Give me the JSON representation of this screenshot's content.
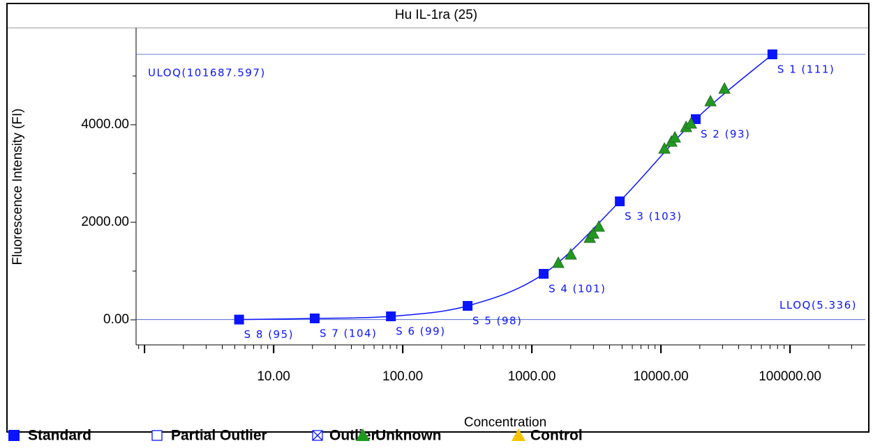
{
  "chart_data": {
    "type": "scatter",
    "title": "Hu IL-1ra (25)",
    "x_label": "Concentration",
    "y_label": "Fluorescence Intensity (FI)",
    "x_log": true,
    "xlim": [
      0.86,
      383000
    ],
    "ylim": [
      -514,
      5986
    ],
    "xticks": [
      {
        "value": 10,
        "label": "10.00"
      },
      {
        "value": 100,
        "label": "100.00"
      },
      {
        "value": 1000,
        "label": "1000.00"
      },
      {
        "value": 10000,
        "label": "10000.00"
      },
      {
        "value": 100000,
        "label": "100000.00"
      }
    ],
    "yticks": [
      {
        "value": 0,
        "label": "0.00"
      },
      {
        "value": 2000,
        "label": "2000.00"
      },
      {
        "value": 4000,
        "label": "4000.00"
      }
    ],
    "y_minor_ticks": [
      1000,
      3000,
      5000
    ],
    "reference_lines": [
      {
        "label": "ULOQ(101687.597)",
        "value": 5443
      },
      {
        "label": "LLOQ(5.336)",
        "value": 5
      }
    ],
    "series": [
      {
        "name": "Standard",
        "color": "#0a14ff",
        "marker": "square",
        "fit_line": true,
        "x": [
          73000,
          18600,
          4800,
          1235,
          318,
          81,
          20.8,
          5.4
        ],
        "values": [
          5443,
          4114,
          2429,
          943,
          286,
          71,
          29,
          5
        ],
        "point_labels": [
          "S 1 (111)",
          "S 2 (93)",
          "S 3 (103)",
          "S 4 (101)",
          "S 5 (98)",
          "S 6 (99)",
          "S 7 (104)",
          "S 8 (95)"
        ]
      },
      {
        "name": "Partial Outlier",
        "color": "#0a14ff",
        "marker": "hollow-square",
        "x": [],
        "values": []
      },
      {
        "name": "Outlier",
        "color": "#0a14ff",
        "marker": "crossed-square",
        "x": [],
        "values": []
      },
      {
        "name": "Unknown",
        "color": "#1f9a1f",
        "marker": "triangle",
        "x": [
          1603,
          2004,
          2810,
          2990,
          3305,
          10640,
          12050,
          12830,
          15660,
          17070,
          24200,
          31050
        ],
        "values": [
          1157,
          1329,
          1671,
          1757,
          1900,
          3500,
          3643,
          3729,
          3943,
          4014,
          4471,
          4729
        ]
      },
      {
        "name": "Control",
        "color": "#f5c400",
        "marker": "triangle",
        "x": [],
        "values": []
      }
    ]
  }
}
